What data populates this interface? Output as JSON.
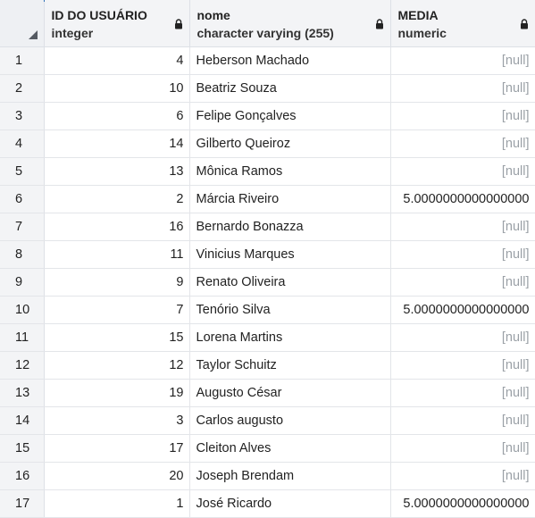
{
  "columns": [
    {
      "name": "ID DO USUÁRIO",
      "type": "integer"
    },
    {
      "name": "nome",
      "type": "character varying (255)"
    },
    {
      "name": "MEDIA",
      "type": "numeric"
    }
  ],
  "rows": [
    {
      "n": "1",
      "id": "4",
      "nome": "Heberson Machado",
      "media": "[null]"
    },
    {
      "n": "2",
      "id": "10",
      "nome": "Beatriz Souza",
      "media": "[null]"
    },
    {
      "n": "3",
      "id": "6",
      "nome": "Felipe Gonçalves",
      "media": "[null]"
    },
    {
      "n": "4",
      "id": "14",
      "nome": "Gilberto Queiroz",
      "media": "[null]"
    },
    {
      "n": "5",
      "id": "13",
      "nome": "Mônica Ramos",
      "media": "[null]"
    },
    {
      "n": "6",
      "id": "2",
      "nome": "Márcia Riveiro",
      "media": "5.0000000000000000"
    },
    {
      "n": "7",
      "id": "16",
      "nome": "Bernardo Bonazza",
      "media": "[null]"
    },
    {
      "n": "8",
      "id": "11",
      "nome": "Vinicius Marques",
      "media": "[null]"
    },
    {
      "n": "9",
      "id": "9",
      "nome": "Renato Oliveira",
      "media": "[null]"
    },
    {
      "n": "10",
      "id": "7",
      "nome": "Tenório Silva",
      "media": "5.0000000000000000"
    },
    {
      "n": "11",
      "id": "15",
      "nome": "Lorena Martins",
      "media": "[null]"
    },
    {
      "n": "12",
      "id": "12",
      "nome": "Taylor Schuitz",
      "media": "[null]"
    },
    {
      "n": "13",
      "id": "19",
      "nome": "Augusto César",
      "media": "[null]"
    },
    {
      "n": "14",
      "id": "3",
      "nome": "Carlos augusto",
      "media": "[null]"
    },
    {
      "n": "15",
      "id": "17",
      "nome": "Cleiton Alves",
      "media": "[null]"
    },
    {
      "n": "16",
      "id": "20",
      "nome": "Joseph Brendam",
      "media": "[null]"
    },
    {
      "n": "17",
      "id": "1",
      "nome": "José Ricardo",
      "media": "5.0000000000000000"
    }
  ],
  "null_color": "#9aa0a6",
  "accent": "#2c6fb7"
}
